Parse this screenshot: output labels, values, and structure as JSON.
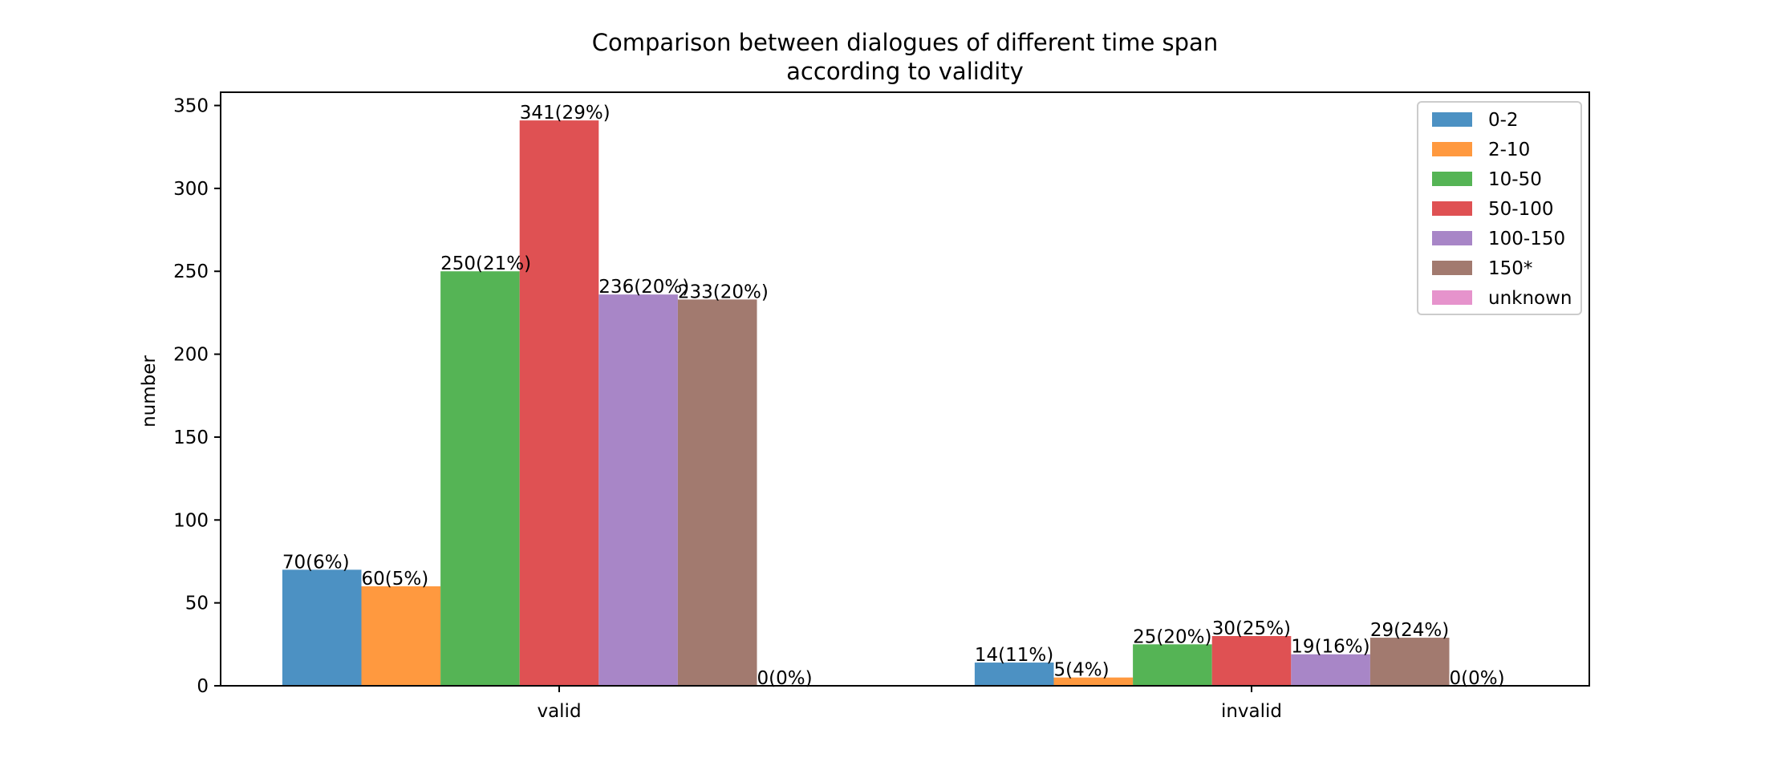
{
  "chart_data": {
    "type": "bar",
    "title_lines": [
      "Comparison between dialogues of different time span",
      "according to validity"
    ],
    "xlabel": "",
    "ylabel": "number",
    "categories": [
      "valid",
      "invalid"
    ],
    "ylim": [
      0,
      358
    ],
    "yticks": [
      0,
      50,
      100,
      150,
      200,
      250,
      300,
      350
    ],
    "grid": false,
    "legend_position": "top-right",
    "series": [
      {
        "name": "0-2",
        "color": "#4c91c3",
        "values": [
          70,
          14
        ],
        "labels": [
          "70(6%)",
          "14(11%)"
        ]
      },
      {
        "name": "2-10",
        "color": "#ff993f",
        "values": [
          60,
          5
        ],
        "labels": [
          "60(5%)",
          "5(4%)"
        ]
      },
      {
        "name": "10-50",
        "color": "#55b455",
        "values": [
          250,
          25
        ],
        "labels": [
          "250(21%)",
          "25(20%)"
        ]
      },
      {
        "name": "50-100",
        "color": "#df5153",
        "values": [
          341,
          30
        ],
        "labels": [
          "341(29%)",
          "30(25%)"
        ]
      },
      {
        "name": "100-150",
        "color": "#a886c7",
        "values": [
          236,
          19
        ],
        "labels": [
          "236(20%)",
          "19(16%)"
        ]
      },
      {
        "name": "150*",
        "color": "#a27a6f",
        "values": [
          233,
          29
        ],
        "labels": [
          "233(20%)",
          "29(24%)"
        ]
      },
      {
        "name": "unknown",
        "color": "#e693cc",
        "values": [
          0,
          0
        ],
        "labels": [
          "0(0%)",
          "0(0%)"
        ]
      }
    ]
  }
}
